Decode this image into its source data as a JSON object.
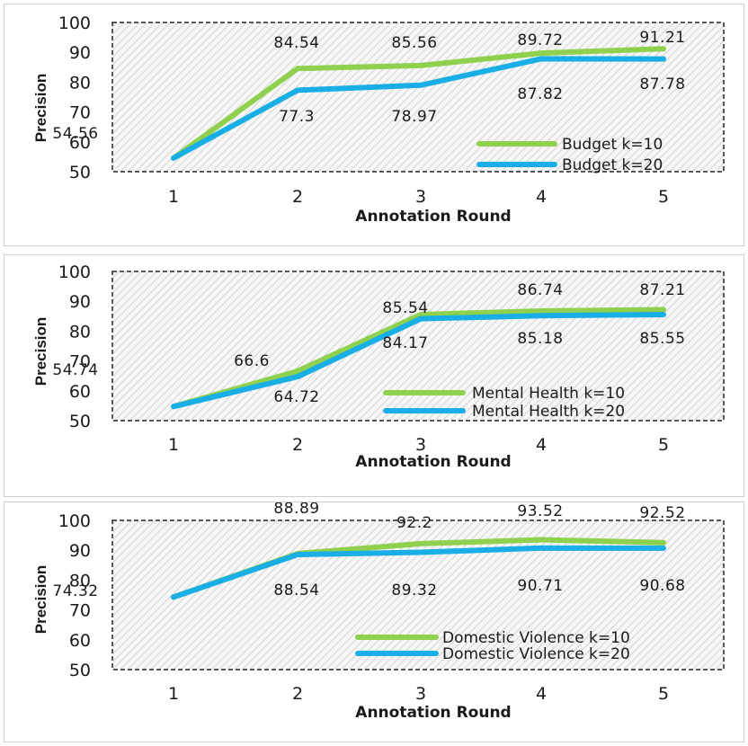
{
  "chart_data": [
    {
      "type": "line",
      "xlabel": "Annotation Round",
      "ylabel": "Precision",
      "x": [
        "1",
        "2",
        "3",
        "4",
        "5"
      ],
      "ylim": [
        50,
        100
      ],
      "yticks": [
        "50",
        "60",
        "70",
        "80",
        "90",
        "100"
      ],
      "legend_position": "bottom-right",
      "series": [
        {
          "name": "Budget k=10",
          "color": "#8fd14f",
          "values": [
            54.56,
            84.54,
            85.56,
            89.72,
            91.21
          ],
          "labels": [
            "54.56",
            "84.54",
            "85.56",
            "89.72",
            "91.21"
          ]
        },
        {
          "name": "Budget k=20",
          "color": "#19aee6",
          "values": [
            54.56,
            77.3,
            78.97,
            87.82,
            87.78
          ],
          "labels": [
            "",
            "77.3",
            "78.97",
            "87.82",
            "87.78"
          ]
        }
      ]
    },
    {
      "type": "line",
      "xlabel": "Annotation Round",
      "ylabel": "Precision",
      "x": [
        "1",
        "2",
        "3",
        "4",
        "5"
      ],
      "ylim": [
        50,
        100
      ],
      "yticks": [
        "50",
        "60",
        "70",
        "80",
        "90",
        "100"
      ],
      "legend_position": "bottom-right",
      "series": [
        {
          "name": "Mental Health k=10",
          "color": "#8fd14f",
          "values": [
            54.74,
            66.6,
            85.54,
            86.74,
            87.21
          ],
          "labels": [
            "54.74",
            "66.6",
            "85.54",
            "86.74",
            "87.21"
          ]
        },
        {
          "name": "Mental Health k=20",
          "color": "#19aee6",
          "values": [
            54.74,
            64.72,
            84.17,
            85.18,
            85.55
          ],
          "labels": [
            "",
            "64.72",
            "84.17",
            "85.18",
            "85.55"
          ]
        }
      ]
    },
    {
      "type": "line",
      "xlabel": "Annotation Round",
      "ylabel": "Precision",
      "x": [
        "1",
        "2",
        "3",
        "4",
        "5"
      ],
      "ylim": [
        50,
        100
      ],
      "yticks": [
        "50",
        "60",
        "70",
        "80",
        "90",
        "100"
      ],
      "legend_position": "bottom-right",
      "series": [
        {
          "name": "Domestic Violence k=10",
          "color": "#8fd14f",
          "values": [
            74.32,
            88.89,
            92.2,
            93.52,
            92.52
          ],
          "labels": [
            "74.32",
            "88.89",
            "92.2",
            "93.52",
            "92.52"
          ]
        },
        {
          "name": "Domestic Violence k=20",
          "color": "#19aee6",
          "values": [
            74.32,
            88.54,
            89.32,
            90.71,
            90.68
          ],
          "labels": [
            "",
            "88.54",
            "89.32",
            "90.71",
            "90.68"
          ]
        }
      ]
    }
  ]
}
